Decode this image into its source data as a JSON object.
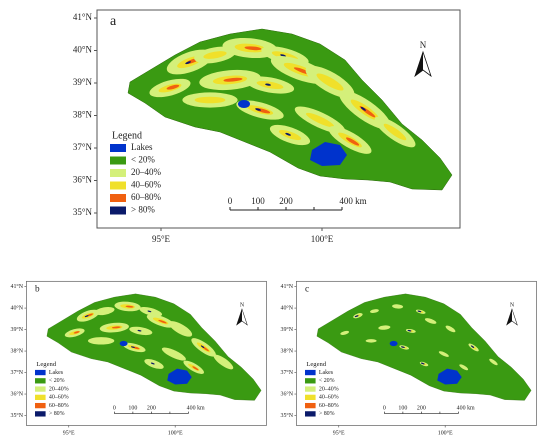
{
  "panels": [
    {
      "label": "a",
      "lat_labels": [
        "41°N",
        "40°N",
        "39°N",
        "38°N",
        "37°N",
        "36°N",
        "35°N"
      ],
      "lon_labels": [
        "95°E",
        "100°E"
      ],
      "legend": {
        "title": "Legend",
        "items": [
          "Lakes",
          "< 20%",
          "20–40%",
          "40–60%",
          "60–80%",
          "> 80%"
        ],
        "colors": [
          "#0033cc",
          "#3a9a12",
          "#d4f07a",
          "#f0e02a",
          "#f06010",
          "#0a1a6a"
        ]
      },
      "scale": [
        "0",
        "100",
        "200",
        "400 km"
      ],
      "north": "N"
    },
    {
      "label": "b",
      "lat_labels": [
        "41°N",
        "40°N",
        "39°N",
        "38°N",
        "37°N",
        "36°N",
        "35°N"
      ],
      "lon_labels": [
        "95°E",
        "100°E"
      ],
      "legend": {
        "title": "Legend",
        "items": [
          "Lakes",
          "< 20%",
          "20–40%",
          "40–60%",
          "60–80%",
          "> 80%"
        ],
        "colors": [
          "#0033cc",
          "#3a9a12",
          "#d4f07a",
          "#f0e02a",
          "#f06010",
          "#0a1a6a"
        ]
      },
      "scale": [
        "0",
        "100",
        "200",
        "400 km"
      ],
      "north": "N"
    },
    {
      "label": "c",
      "lat_labels": [
        "41°N",
        "40°N",
        "39°N",
        "38°N",
        "37°N",
        "36°N",
        "35°N"
      ],
      "lon_labels": [
        "95°E",
        "100°E"
      ],
      "legend": {
        "title": "Legend",
        "items": [
          "Lakes",
          "< 20%",
          "20–40%",
          "40–60%",
          "60–80%",
          "> 80%"
        ],
        "colors": [
          "#0033cc",
          "#3a9a12",
          "#d4f07a",
          "#f0e02a",
          "#f06010",
          "#0a1a6a"
        ]
      },
      "scale": [
        "0",
        "100",
        "200",
        "400 km"
      ],
      "north": "N"
    }
  ]
}
